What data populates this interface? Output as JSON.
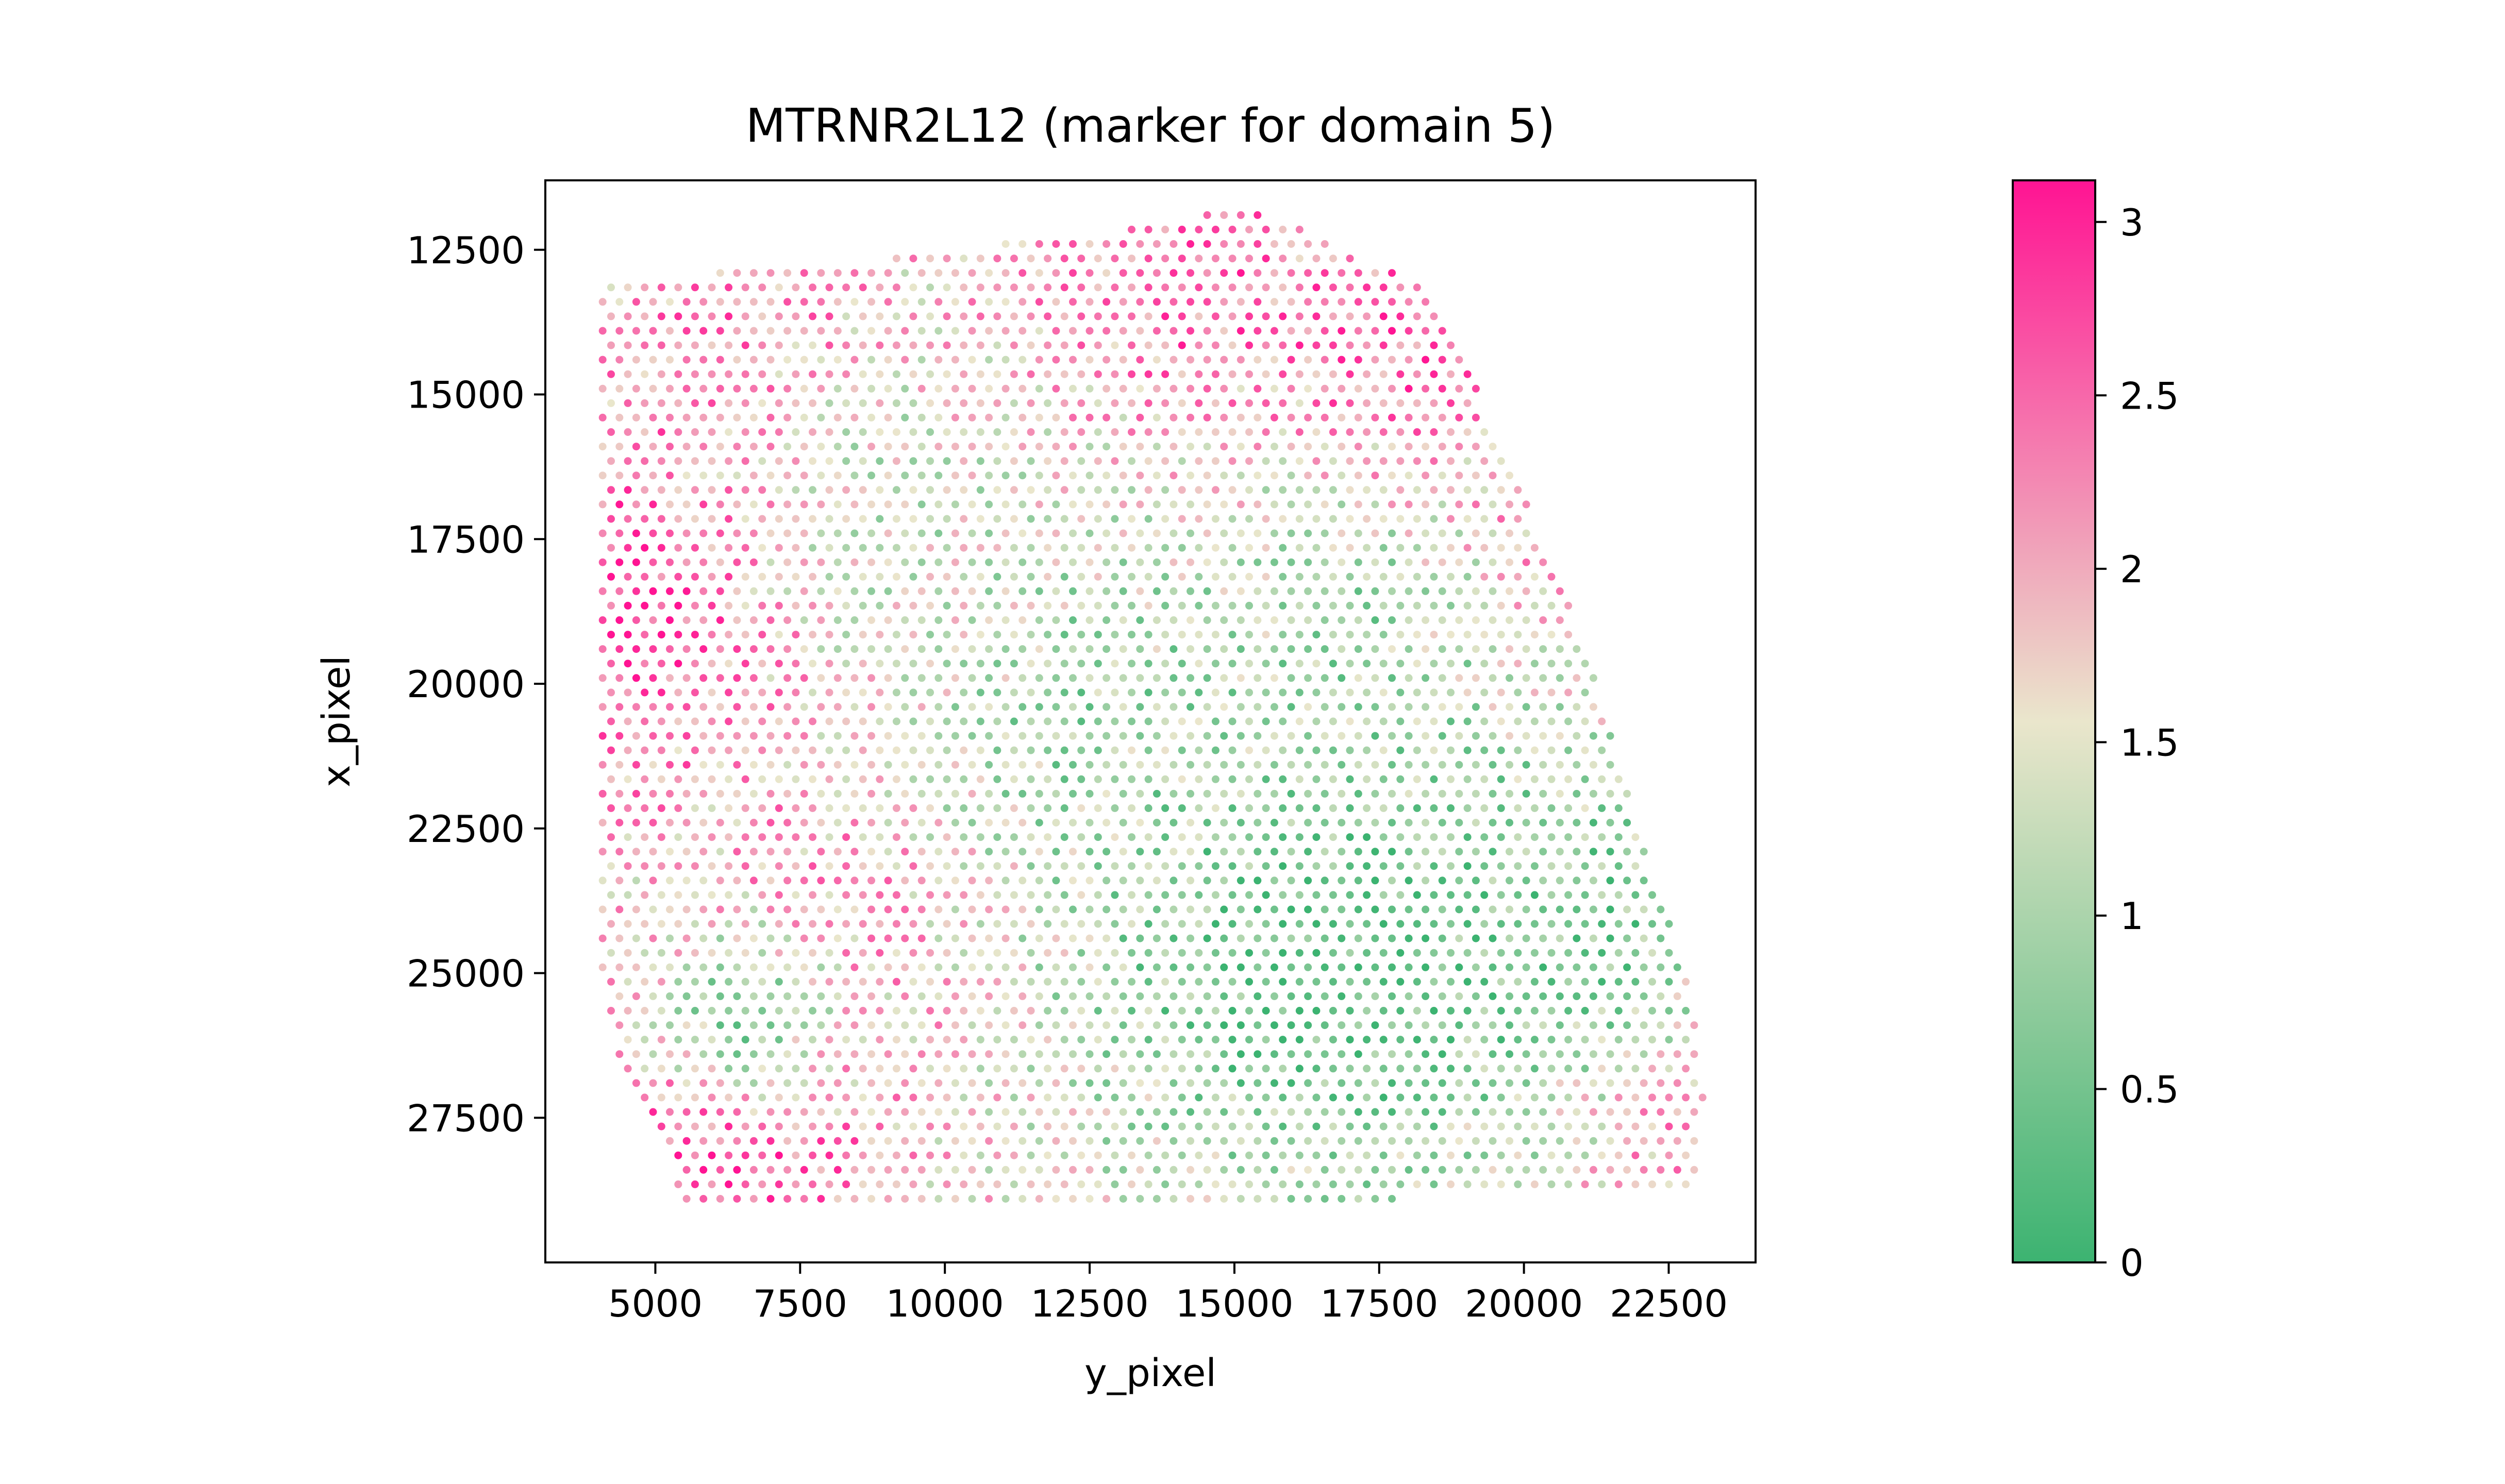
{
  "chart_data": {
    "type": "scatter",
    "title": "MTRNR2L12 (marker for domain 5)",
    "xlabel": "y_pixel",
    "ylabel": "x_pixel",
    "xlim": [
      3100,
      24000
    ],
    "ylim": [
      30000,
      11300
    ],
    "y_inverted": true,
    "grid": false,
    "legend": "none",
    "xticks": [
      5000,
      7500,
      10000,
      12500,
      15000,
      17500,
      20000,
      22500
    ],
    "xtick_labels": [
      "5000",
      "7500",
      "10000",
      "12500",
      "15000",
      "17500",
      "20000",
      "22500"
    ],
    "yticks": [
      12500,
      15000,
      17500,
      20000,
      22500,
      25000,
      27500
    ],
    "ytick_labels": [
      "12500",
      "15000",
      "17500",
      "20000",
      "22500",
      "25000",
      "27500"
    ],
    "colorbar": {
      "vmin": 0,
      "vmax": 3.12,
      "ticks": [
        0,
        0.5,
        1,
        1.5,
        2,
        2.5,
        3
      ],
      "tick_labels": [
        "0",
        "0.5",
        "1",
        "1.5",
        "2",
        "2.5",
        "3"
      ],
      "colors": [
        "#3cb371",
        "#eae6cc",
        "#ff1493"
      ]
    },
    "spot_grid": {
      "row_start": 11900,
      "row_step": 250,
      "row_count": 69,
      "col_step": 290,
      "col_offset_odd": 145
    },
    "tissue_polygon": [
      [
        4050,
        13050
      ],
      [
        8500,
        12700
      ],
      [
        11000,
        12400
      ],
      [
        13200,
        12150
      ],
      [
        14500,
        11900
      ],
      [
        15400,
        11850
      ],
      [
        17000,
        12500
      ],
      [
        18500,
        13300
      ],
      [
        19000,
        14400
      ],
      [
        20000,
        16800
      ],
      [
        21000,
        19200
      ],
      [
        22000,
        22500
      ],
      [
        23000,
        25600
      ],
      [
        23100,
        27200
      ],
      [
        23000,
        28800
      ],
      [
        18000,
        28900
      ],
      [
        12000,
        28950
      ],
      [
        5500,
        28950
      ],
      [
        5100,
        28000
      ],
      [
        4400,
        26500
      ],
      [
        4000,
        24500
      ],
      [
        3950,
        16000
      ],
      [
        3950,
        13600
      ]
    ],
    "expression_regions": [
      {
        "center": [
          4700,
          18500
        ],
        "radius": 2200,
        "value": 2.9
      },
      {
        "center": [
          6300,
          28000
        ],
        "radius": 1700,
        "value": 3.0
      },
      {
        "center": [
          6500,
          13800
        ],
        "radius": 1500,
        "value": 2.5
      },
      {
        "center": [
          14000,
          13200
        ],
        "radius": 2000,
        "value": 2.5
      },
      {
        "center": [
          17800,
          14200
        ],
        "radius": 1600,
        "value": 2.6
      },
      {
        "center": [
          9000,
          23500
        ],
        "radius": 2200,
        "value": 2.3
      },
      {
        "center": [
          20500,
          17500
        ],
        "radius": 1500,
        "value": 2.3
      },
      {
        "center": [
          22500,
          27800
        ],
        "radius": 1200,
        "value": 2.4
      },
      {
        "center": [
          16500,
          24500
        ],
        "radius": 3300,
        "value": 0.2
      },
      {
        "center": [
          20800,
          24000
        ],
        "radius": 1700,
        "value": 0.5
      },
      {
        "center": [
          12500,
          20500
        ],
        "radius": 2400,
        "value": 0.9
      },
      {
        "center": [
          6500,
          25800
        ],
        "radius": 1100,
        "value": 0.6
      },
      {
        "center": [
          17000,
          19500
        ],
        "radius": 1800,
        "value": 0.9
      },
      {
        "center": [
          9000,
          17000
        ],
        "radius": 1800,
        "value": 1.3
      }
    ],
    "base_value": 1.7,
    "noise_amplitude": 0.7
  }
}
